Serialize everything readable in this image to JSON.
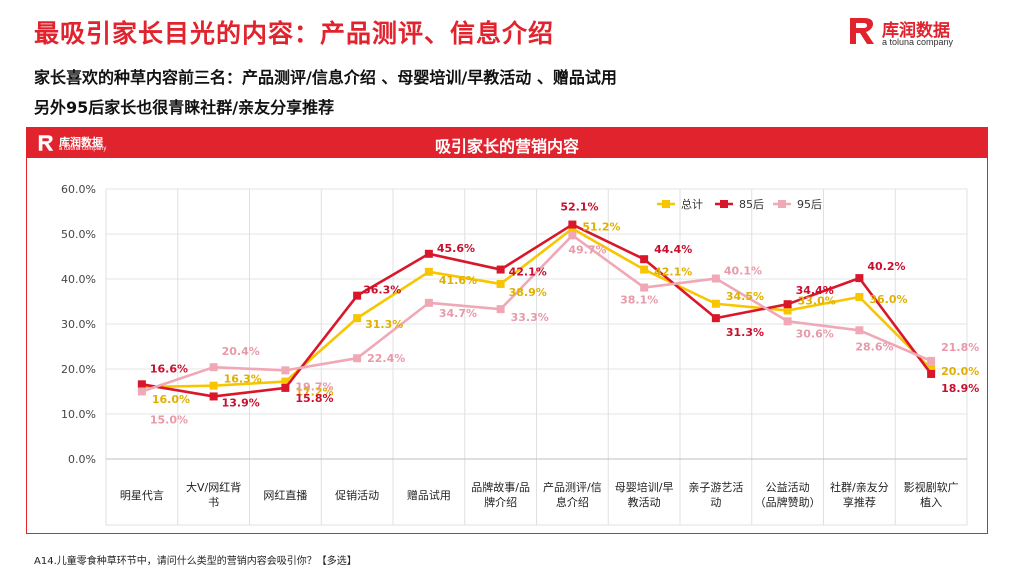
{
  "header": {
    "title": "最吸引家长目光的内容：产品测评、信息介绍",
    "subtitle_1": "家长喜欢的种草内容前三名：产品测评/信息介绍 、母婴培训/早教活动 、赠品试用",
    "subtitle_2": "另外95后家长也很青睐社群/亲友分享推荐"
  },
  "brand": {
    "name": "库润数据",
    "tagline": "a toluna company",
    "color": "#e1232e"
  },
  "panel": {
    "title": "吸引家长的营销内容"
  },
  "footnote": "A14.儿童零食种草环节中，请问什么类型的营销内容会吸引你？【多选】",
  "chart_data": {
    "type": "line",
    "title": "吸引家长的营销内容",
    "categories": [
      "明星代言",
      "大V/网红背书",
      "网红直播",
      "促销活动",
      "赠品试用",
      "品牌故事/品牌介绍",
      "产品测评/信息介绍",
      "母婴培训/早教活动",
      "亲子游艺活动",
      "公益活动（品牌赞助）",
      "社群/亲友分享推荐",
      "影视剧软广植入"
    ],
    "category_lines": [
      [
        "明星代言"
      ],
      [
        "大V/网红背",
        "书"
      ],
      [
        "网红直播"
      ],
      [
        "促销活动"
      ],
      [
        "赠品试用"
      ],
      [
        "品牌故事/品",
        "牌介绍"
      ],
      [
        "产品测评/信",
        "息介绍"
      ],
      [
        "母婴培训/早",
        "教活动"
      ],
      [
        "亲子游艺活",
        "动"
      ],
      [
        "公益活动",
        "（品牌赞助）"
      ],
      [
        "社群/亲友分",
        "享推荐"
      ],
      [
        "影视剧软广",
        "植入"
      ]
    ],
    "yticks": [
      "0.0%",
      "10.0%",
      "20.0%",
      "30.0%",
      "40.0%",
      "50.0%",
      "60.0%"
    ],
    "ylim": [
      0,
      60
    ],
    "legend_position": "top-right",
    "series": [
      {
        "name": "总计",
        "color": "#f7c600",
        "values": [
          16.0,
          16.3,
          17.2,
          31.3,
          41.6,
          38.9,
          51.2,
          42.1,
          34.5,
          33.0,
          36.0,
          20.0
        ],
        "labels": [
          "16.0%",
          "16.3%",
          "17.2%",
          "31.3%",
          "41.6%",
          "38.9%",
          "51.2%",
          "42.1%",
          "34.5%",
          "33.0%",
          "36.0%",
          "20.0%"
        ]
      },
      {
        "name": "85后",
        "color": "#d9172b",
        "values": [
          16.6,
          13.9,
          15.8,
          36.3,
          45.6,
          42.1,
          52.1,
          44.4,
          31.3,
          34.4,
          40.2,
          18.9
        ],
        "labels": [
          "16.6%",
          "13.9%",
          "15.8%",
          "36.3%",
          "45.6%",
          "42.1%",
          "52.1%",
          "44.4%",
          "31.3%",
          "34.4%",
          "40.2%",
          "18.9%"
        ]
      },
      {
        "name": "95后",
        "color": "#f0a8b6",
        "values": [
          15.0,
          20.4,
          19.7,
          22.4,
          34.7,
          33.3,
          49.7,
          38.1,
          40.1,
          30.6,
          28.6,
          21.8
        ],
        "labels": [
          "15.0%",
          "20.4%",
          "19.7%",
          "22.4%",
          "34.7%",
          "33.3%",
          "49.7%",
          "38.1%",
          "40.1%",
          "30.6%",
          "28.6%",
          "21.8%"
        ]
      }
    ]
  }
}
